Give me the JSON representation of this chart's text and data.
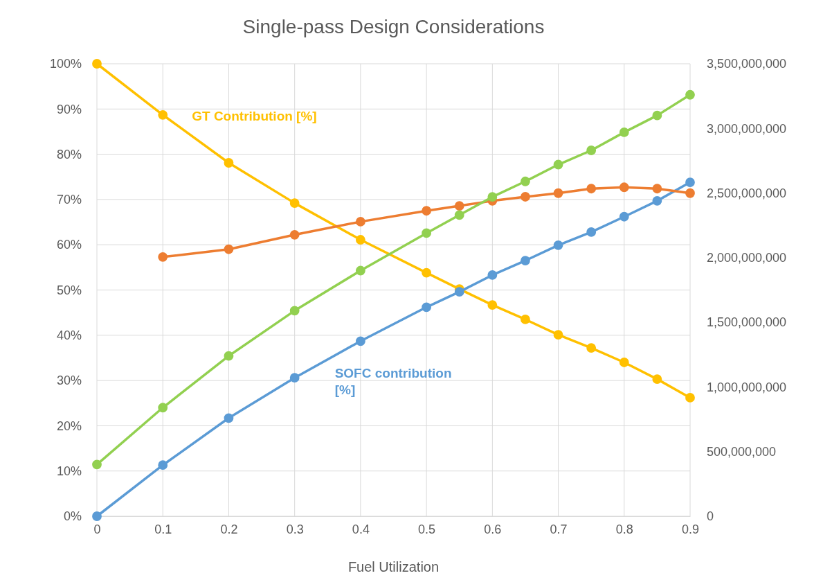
{
  "chart_data": {
    "type": "line",
    "title": "Single-pass Design Considerations",
    "xlabel": "Fuel Utilization",
    "xlim": [
      0,
      0.9
    ],
    "xticks": [
      0,
      0.1,
      0.2,
      0.3,
      0.4,
      0.5,
      0.6,
      0.7,
      0.8,
      0.9
    ],
    "ylim": [
      0,
      100
    ],
    "yticks": [
      {
        "value": 0,
        "label": "0%"
      },
      {
        "value": 10,
        "label": "10%"
      },
      {
        "value": 20,
        "label": "20%"
      },
      {
        "value": 30,
        "label": "30%"
      },
      {
        "value": 40,
        "label": "40%"
      },
      {
        "value": 50,
        "label": "50%"
      },
      {
        "value": 60,
        "label": "60%"
      },
      {
        "value": 70,
        "label": "70%"
      },
      {
        "value": 80,
        "label": "80%"
      },
      {
        "value": 90,
        "label": "90%"
      },
      {
        "value": 100,
        "label": "100%"
      }
    ],
    "y2lim": [
      0,
      3500000000
    ],
    "y2ticks": [
      0,
      {
        "value": 500000000,
        "label": "500,000,000"
      },
      {
        "value": 1000000000,
        "label": "1,000,000,000"
      },
      {
        "value": 1500000000,
        "label": "1,500,000,000"
      },
      {
        "value": 2000000000,
        "label": "2,000,000,000"
      },
      {
        "value": 2500000000,
        "label": "2,500,000,000"
      },
      {
        "value": 3000000000,
        "label": "3,000,000,000"
      },
      {
        "value": 3500000000,
        "label": "3,500,000,000"
      }
    ],
    "grid": true,
    "marker": "circle",
    "line_style": "solid",
    "series": [
      {
        "name": "GT Contribution [%]",
        "color": "#ffc000",
        "x": [
          0,
          0.1,
          0.2,
          0.3,
          0.4,
          0.5,
          0.55,
          0.6,
          0.65,
          0.7,
          0.75,
          0.8,
          0.85,
          0.9
        ],
        "values": [
          100,
          88.7,
          78.1,
          69.2,
          61.1,
          53.8,
          50.2,
          46.7,
          43.5,
          40.1,
          37.2,
          34.0,
          30.3,
          26.2
        ]
      },
      {
        "name": "SOFC contribution [%]",
        "color": "#5b9bd5",
        "x": [
          0,
          0.1,
          0.2,
          0.3,
          0.4,
          0.5,
          0.55,
          0.6,
          0.65,
          0.7,
          0.75,
          0.8,
          0.85,
          0.9
        ],
        "values": [
          0,
          11.3,
          21.7,
          30.6,
          38.7,
          46.2,
          49.6,
          53.3,
          56.5,
          59.9,
          62.8,
          66.2,
          69.7,
          73.8
        ]
      },
      {
        "color": "#ed7d31",
        "x": [
          0.1,
          0.2,
          0.3,
          0.4,
          0.5,
          0.55,
          0.6,
          0.65,
          0.7,
          0.75,
          0.8,
          0.85,
          0.9
        ],
        "values": [
          57.3,
          59.0,
          62.2,
          65.1,
          67.5,
          68.6,
          69.7,
          70.6,
          71.4,
          72.4,
          72.7,
          72.4,
          71.4
        ]
      },
      {
        "color": "#92d050",
        "axis": "y2",
        "x": [
          0,
          0.1,
          0.2,
          0.3,
          0.4,
          0.5,
          0.55,
          0.6,
          0.65,
          0.7,
          0.75,
          0.8,
          0.85,
          0.9
        ],
        "values": [
          400000000,
          840000000,
          1240000000,
          1590000000,
          1900000000,
          2190000000,
          2330000000,
          2470000000,
          2590000000,
          2720000000,
          2830000000,
          2970000000,
          3100000000,
          3260000000
        ]
      }
    ]
  }
}
